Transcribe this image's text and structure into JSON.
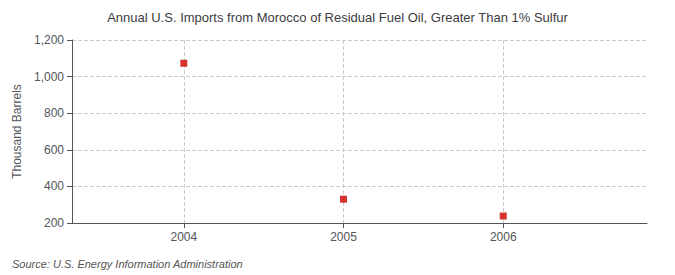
{
  "chart_data": {
    "type": "scatter",
    "title": "Annual U.S. Imports from Morocco of Residual Fuel Oil, Greater Than 1% Sulfur",
    "ylabel": "Thousand Barrels",
    "annotations": [
      "Source: U.S. Energy Information Administration"
    ],
    "x": [
      2004,
      2005,
      2006
    ],
    "values": [
      1073,
      330,
      238
    ],
    "color": "#cc0000",
    "marker": "square",
    "xlim": [
      2003.3,
      2006.9
    ],
    "xticks": [
      2004,
      2005,
      2006
    ],
    "ylim": [
      200,
      1200
    ],
    "yticks": [
      200,
      400,
      600,
      800,
      {
        "value": 1000,
        "label": "1,000"
      },
      {
        "value": 1200,
        "label": "1,200"
      }
    ],
    "grid": true
  }
}
